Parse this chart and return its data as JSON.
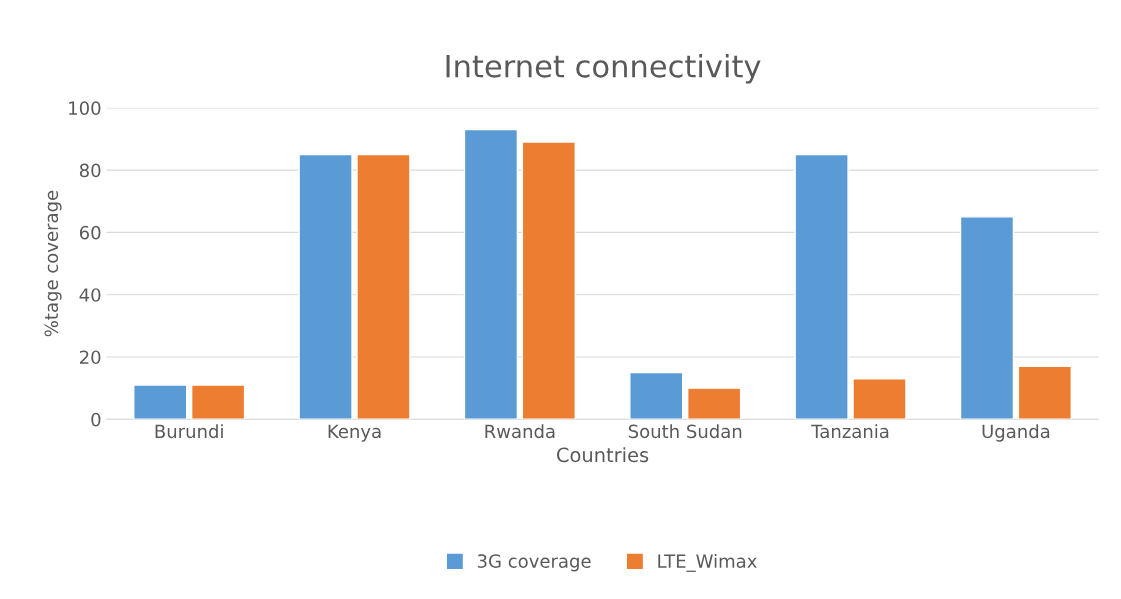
{
  "chart_data": {
    "type": "bar",
    "title": "Internet connectivity",
    "xlabel": "Countries",
    "ylabel": "%tage coverage",
    "categories": [
      "Burundi",
      "Kenya",
      "Rwanda",
      "South Sudan",
      "Tanzania",
      "Uganda"
    ],
    "series": [
      {
        "name": "3G coverage",
        "color": "#5b9bd5",
        "values": [
          11,
          85,
          93,
          15,
          85,
          65
        ]
      },
      {
        "name": "LTE_Wimax",
        "color": "#ed7d31",
        "values": [
          11,
          85,
          89,
          10,
          13,
          17
        ]
      }
    ],
    "ylim": [
      0,
      100
    ],
    "yticks": [
      0,
      20,
      40,
      60,
      80,
      100
    ],
    "grid": "y",
    "legend": "bottom"
  }
}
